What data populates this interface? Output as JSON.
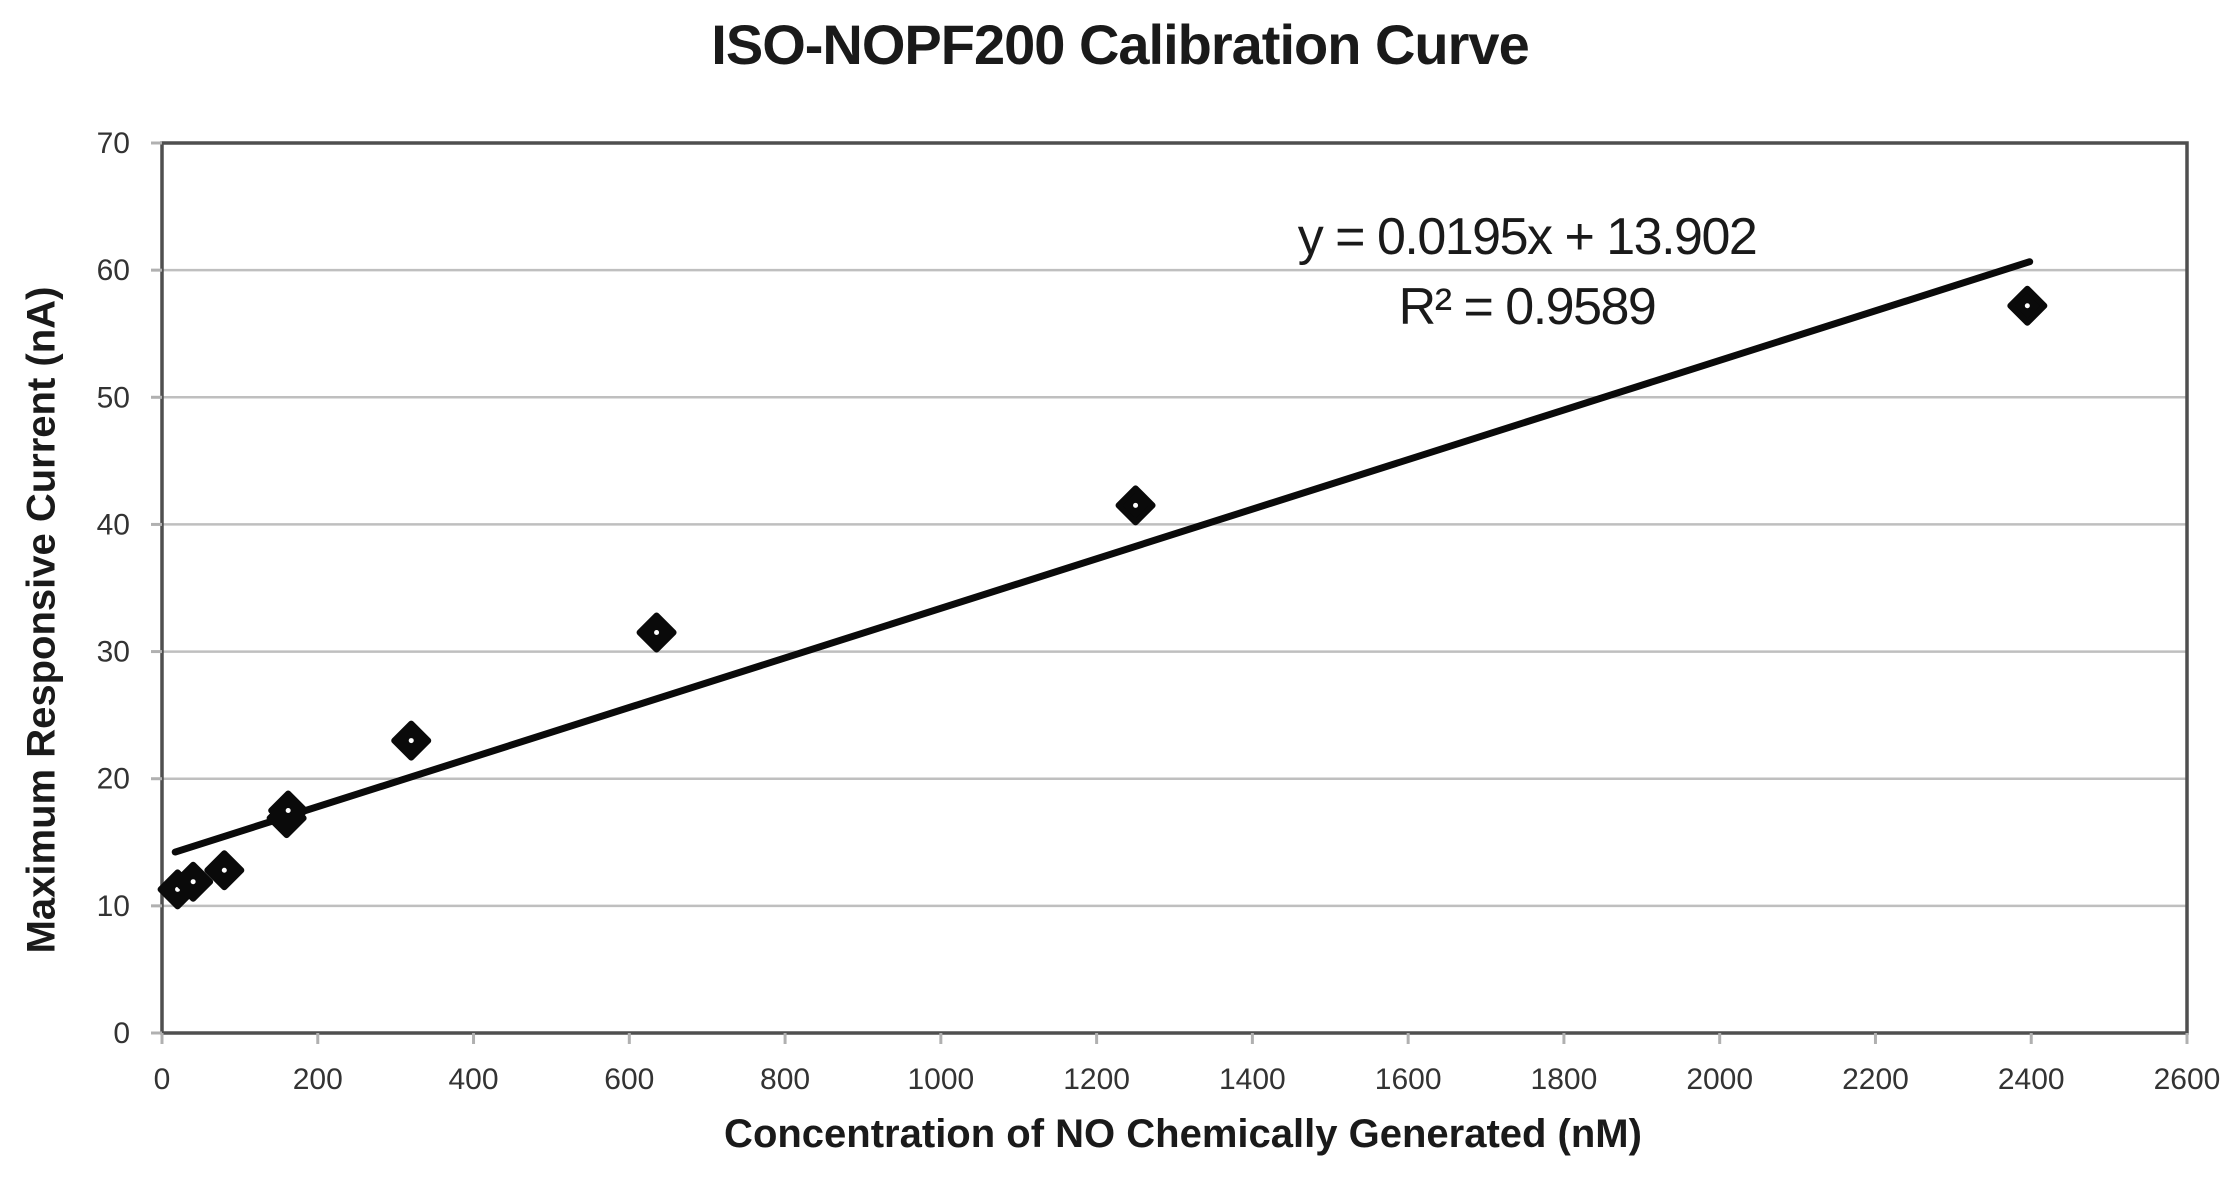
{
  "chart_data": {
    "type": "scatter",
    "title": "ISO-NOPF200 Calibration Curve",
    "xlabel": "Concentration of NO Chemically Generated (nM)",
    "ylabel": "Maximum Responsive Current (nA)",
    "xlim": [
      0,
      2600
    ],
    "ylim": [
      0,
      70
    ],
    "x_ticks": [
      0,
      200,
      400,
      600,
      800,
      1000,
      1200,
      1400,
      1600,
      1800,
      2000,
      2200,
      2400,
      2600
    ],
    "y_ticks": [
      0,
      10,
      20,
      30,
      40,
      50,
      60,
      70
    ],
    "grid": "horizontal-only",
    "legend": "none",
    "marker": "diamond",
    "points": [
      {
        "x": 20,
        "y": 11.3
      },
      {
        "x": 40,
        "y": 11.9
      },
      {
        "x": 80,
        "y": 12.8
      },
      {
        "x": 160,
        "y": 16.9
      },
      {
        "x": 162,
        "y": 17.5
      },
      {
        "x": 320,
        "y": 23.0
      },
      {
        "x": 635,
        "y": 31.5
      },
      {
        "x": 1250,
        "y": 41.5
      },
      {
        "x": 2395,
        "y": 57.2
      }
    ],
    "trendline": {
      "slope": 0.0195,
      "intercept": 13.902,
      "x_start": 17,
      "x_end": 2398
    },
    "annotation": {
      "equation": "y = 0.0195x + 13.902",
      "r_squared": "R² = 0.9589"
    },
    "colors": {
      "marker": "#0a0a0a",
      "trendline": "#0a0a0a",
      "gridline": "#bfbfbf",
      "axis_border": "#4f4f4f",
      "tick": "#b0b0b0",
      "tick_text": "#333333",
      "text": "#1a1a1a"
    }
  }
}
